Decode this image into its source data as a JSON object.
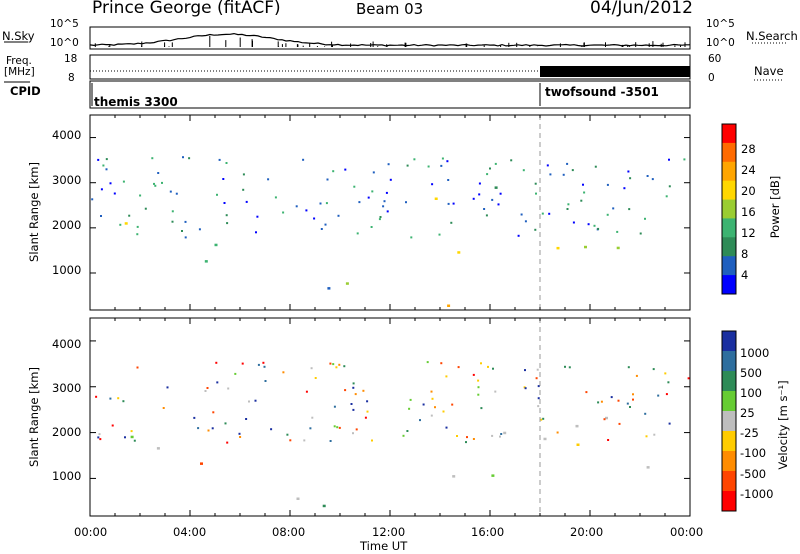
{
  "header": {
    "station": "Prince George (fitACF)",
    "beam": "Beam 03",
    "date": "04/Jun/2012"
  },
  "left_labels": {
    "nsky": "N.Sky",
    "freq_line1": "Freq.",
    "freq_line2": "[MHz]",
    "cpid": "CPID"
  },
  "right_labels": {
    "nsearch": "N.Search",
    "nave": "Nave"
  },
  "noise_axis": {
    "left_top": "10^5",
    "left_bottom": "10^0",
    "right_top": "10^5",
    "right_bottom": "10^0"
  },
  "freq_axis": {
    "left_top": "18",
    "left_bottom": "8",
    "right_top": "60",
    "right_bottom": "0"
  },
  "modes": [
    "themis 3300",
    "twofsound -3501"
  ],
  "x_axis": {
    "ticks": [
      "00:00",
      "04:00",
      "08:00",
      "12:00",
      "16:00",
      "20:00",
      "00:00"
    ],
    "label": "Time UT"
  },
  "y_axis": {
    "label": "Slant Range [km]",
    "ticks": [
      "1000",
      "2000",
      "3000",
      "4000"
    ]
  },
  "power_bar": {
    "label": "Power [dB]",
    "ticks": [
      "4",
      "8",
      "12",
      "16",
      "20",
      "24",
      "28"
    ],
    "colors": [
      "#0000ff",
      "#1f5fbf",
      "#2e8b57",
      "#3cb371",
      "#9acd32",
      "#ffd700",
      "#ffa500",
      "#ff6a00",
      "#ff0000"
    ]
  },
  "velocity_bar": {
    "label": "Velocity [m s⁻¹]",
    "ticks": [
      "1000",
      "500",
      "100",
      "25",
      "-25",
      "-100",
      "-500",
      "-1000"
    ],
    "colors": [
      "#1a2fa0",
      "#2e6e9e",
      "#2e8b57",
      "#66cc33",
      "#bebebe",
      "#ffcc00",
      "#ff8c00",
      "#ff4500",
      "#ff0000"
    ]
  },
  "chart_data": {
    "type": "heatmap",
    "x_range_hours": [
      0,
      24
    ],
    "y_range_km": [
      180,
      4500
    ],
    "mode_change_hour": 18.0,
    "power_panel": {
      "bands": [
        {
          "t": [
            0,
            5.5
          ],
          "r": [
            1500,
            2300
          ],
          "level": "strong"
        },
        {
          "t": [
            3,
            5.5
          ],
          "r": [
            1000,
            1500
          ],
          "level": "strong"
        },
        {
          "t": [
            5.5,
            7
          ],
          "r": [
            1600,
            2300
          ],
          "level": "medium"
        },
        {
          "t": [
            7,
            11
          ],
          "r": [
            400,
            1300
          ],
          "level": "medium"
        },
        {
          "t": [
            9,
            18
          ],
          "r": [
            180,
            400
          ],
          "level": "strong"
        },
        {
          "t": [
            13,
            17
          ],
          "r": [
            1400,
            3300
          ],
          "level": "medium"
        },
        {
          "t": [
            15,
            24
          ],
          "r": [
            1200,
            2000
          ],
          "level": "medium"
        }
      ]
    },
    "velocity_panel": {
      "bands": [
        {
          "t": [
            0,
            5.5
          ],
          "r": [
            1400,
            2300
          ],
          "v": "grey"
        },
        {
          "t": [
            3.5,
            5
          ],
          "r": [
            600,
            1400
          ],
          "v": "negative"
        },
        {
          "t": [
            6,
            10
          ],
          "r": [
            500,
            1300
          ],
          "v": "grey"
        },
        {
          "t": [
            9,
            18
          ],
          "r": [
            180,
            450
          ],
          "v": "positive"
        },
        {
          "t": [
            13,
            24
          ],
          "r": [
            1000,
            2500
          ],
          "v": "grey"
        }
      ]
    }
  }
}
